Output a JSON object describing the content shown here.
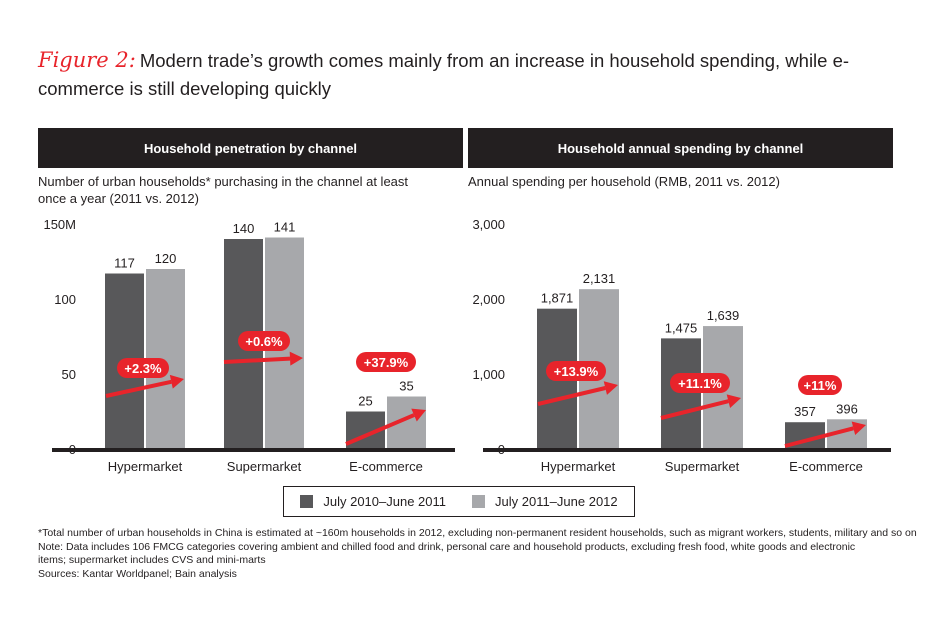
{
  "figure": {
    "label": "Figure 2:",
    "title": "Modern trade’s growth comes mainly from an increase in household spending, while e-commerce is still developing quickly"
  },
  "colors": {
    "series_2011": "#58585a",
    "series_2012": "#a7a8ab",
    "accent_red": "#e8242b",
    "header_bg": "#231f20"
  },
  "legend": [
    {
      "label": "July 2010–June 2011"
    },
    {
      "label": "July 2011–June 2012"
    }
  ],
  "chart_data": [
    {
      "type": "bar",
      "title": "Household penetration by channel",
      "subtitle": "Number of urban households* purchasing in the channel at least once a year (2011 vs. 2012)",
      "xlabel": "",
      "ylabel": "",
      "ylim": [
        0,
        150
      ],
      "yticks": [
        0,
        50,
        100,
        150
      ],
      "ytick_labels": [
        "0",
        "50",
        "100",
        "150M"
      ],
      "grid": false,
      "categories": [
        "Hypermarket",
        "Supermarket",
        "E-commerce"
      ],
      "series": [
        {
          "name": "July 2010–June 2011",
          "values": [
            117,
            140,
            25
          ],
          "labels": [
            "117",
            "140",
            "25"
          ]
        },
        {
          "name": "July 2011–June 2012",
          "values": [
            120,
            141,
            35
          ],
          "labels": [
            "120",
            "141",
            "35"
          ]
        }
      ],
      "growth_labels": [
        "+2.3%",
        "+0.6%",
        "+37.9%"
      ],
      "legend_position": "bottom-center"
    },
    {
      "type": "bar",
      "title": "Household annual spending by channel",
      "subtitle": "Annual spending per household (RMB, 2011 vs. 2012)",
      "xlabel": "",
      "ylabel": "",
      "ylim": [
        0,
        3000
      ],
      "yticks": [
        0,
        1000,
        2000,
        3000
      ],
      "ytick_labels": [
        "0",
        "1,000",
        "2,000",
        "3,000"
      ],
      "grid": false,
      "categories": [
        "Hypermarket",
        "Supermarket",
        "E-commerce"
      ],
      "series": [
        {
          "name": "July 2010–June 2011",
          "values": [
            1871,
            1475,
            357
          ],
          "labels": [
            "1,871",
            "1,475",
            "357"
          ]
        },
        {
          "name": "July 2011–June 2012",
          "values": [
            2131,
            1639,
            396
          ],
          "labels": [
            "2,131",
            "1,639",
            "396"
          ]
        }
      ],
      "growth_labels": [
        "+13.9%",
        "+11.1%",
        "+11%"
      ],
      "legend_position": "bottom-center"
    }
  ],
  "notes": [
    "*Total number of urban households in China is estimated at ~160m households in 2012, excluding non-permanent resident households, such as migrant workers, students, military and so on",
    "Note: Data includes 106 FMCG categories covering ambient and chilled food and drink, personal care and household products, excluding fresh food, white goods and electronic",
    "items; supermarket includes CVS and mini-marts",
    "Sources: Kantar Worldpanel; Bain analysis"
  ]
}
